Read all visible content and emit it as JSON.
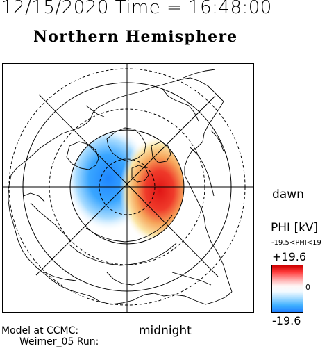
{
  "header": {
    "date_time": "12/15/2020 Time = 16:48:00",
    "hemisphere": "Northern Hemisphere"
  },
  "map": {
    "labels": {
      "dawn": "dawn",
      "midnight": "midnight"
    },
    "potential_pattern": {
      "negative_cell_color": "#3aa6ff",
      "positive_cell_color": "#e8231f"
    }
  },
  "colorbar": {
    "title": "PHI [kV]",
    "range_text": "-19.5<PHI<19",
    "max_label": "+19.6",
    "zero_label": "0",
    "min_label": "-19.6",
    "colors": [
      "#cc0000",
      "#ff3a3a",
      "#ffffff",
      "#3fb0ff",
      "#1f7fff"
    ]
  },
  "credits": {
    "line1": "Model at CCMC:",
    "line2": "Weimer_05 Run:"
  }
}
